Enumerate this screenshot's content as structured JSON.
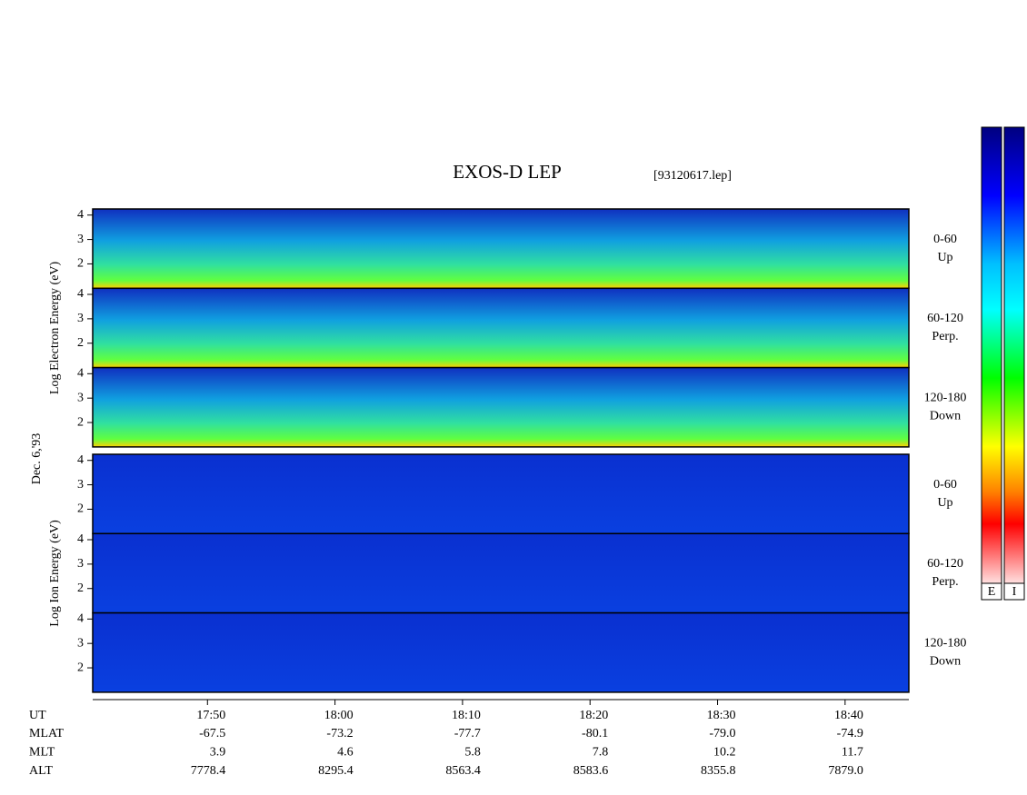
{
  "chart_data": {
    "type": "spectrogram",
    "title": "EXOS-D LEP",
    "subtitle": "[93120617.lep]",
    "date_label": "Dec. 6,'93",
    "groups": [
      {
        "ylabel": "Log  Electron  Energy (eV)",
        "panels": [
          {
            "pitch": "0-60",
            "direction": "Up",
            "ylim": [
              1,
              4.25
            ],
            "yticks": [
              2,
              3,
              4
            ]
          },
          {
            "pitch": "60-120",
            "direction": "Perp.",
            "ylim": [
              1,
              4.25
            ],
            "yticks": [
              2,
              3,
              4
            ]
          },
          {
            "pitch": "120-180",
            "direction": "Down",
            "ylim": [
              1,
              4.25
            ],
            "yticks": [
              2,
              3,
              4
            ]
          }
        ]
      },
      {
        "ylabel": "Log  Ion  Energy (eV)",
        "panels": [
          {
            "pitch": "0-60",
            "direction": "Up",
            "ylim": [
              1,
              4.25
            ],
            "yticks": [
              2,
              3,
              4
            ]
          },
          {
            "pitch": "60-120",
            "direction": "Perp.",
            "ylim": [
              1,
              4.25
            ],
            "yticks": [
              2,
              3,
              4
            ]
          },
          {
            "pitch": "120-180",
            "direction": "Down",
            "ylim": [
              1,
              4.25
            ],
            "yticks": [
              2,
              3,
              4
            ]
          }
        ]
      }
    ],
    "xlabel": "UT",
    "xlim": [
      41,
      105
    ],
    "xticks": [
      {
        "value": 50,
        "label": "17:50"
      },
      {
        "value": 60,
        "label": "18:00"
      },
      {
        "value": 70,
        "label": "18:10"
      },
      {
        "value": 80,
        "label": "18:20"
      },
      {
        "value": 90,
        "label": "18:30"
      },
      {
        "value": 100,
        "label": "18:40"
      }
    ],
    "ephemeris": [
      {
        "name": "MLAT",
        "values": [
          "-67.5",
          "-73.2",
          "-77.7",
          "-80.1",
          "-79.0",
          "-74.9"
        ]
      },
      {
        "name": "MLT",
        "values": [
          "3.9",
          "4.6",
          "5.8",
          "7.8",
          "10.2",
          "11.7"
        ]
      },
      {
        "name": "ALT",
        "values": [
          "7778.4",
          "8295.4",
          "8563.4",
          "8583.6",
          "8355.8",
          "7879.0"
        ]
      }
    ],
    "colorbars": [
      "E",
      "I"
    ]
  }
}
